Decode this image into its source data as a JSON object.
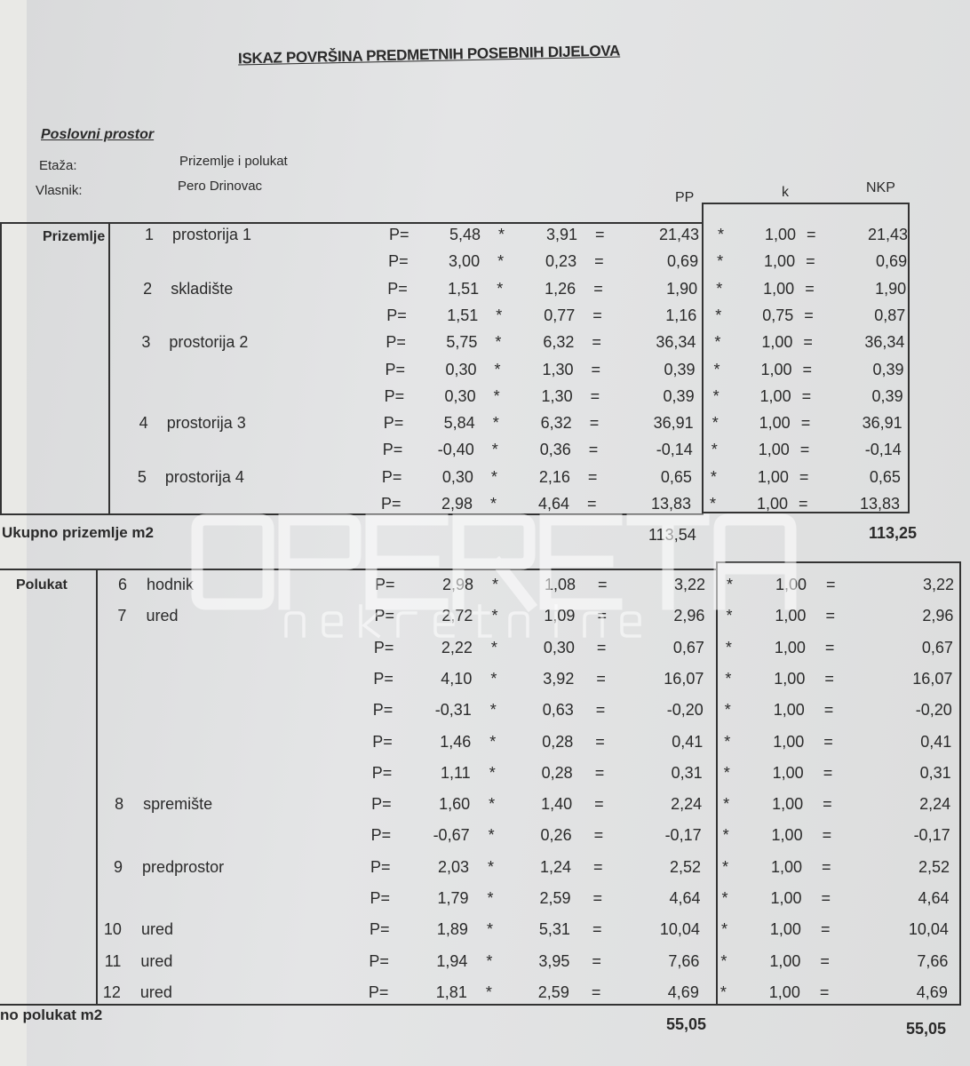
{
  "document": {
    "title": "ISKAZ POVRŠINA PREDMETNIH POSEBNIH DIJELOVA",
    "section": "Poslovni prostor",
    "etaza_label": "Etaža:",
    "etaza_value": "Prizemlje i polukat",
    "vlasnik_label": "Vlasnik:",
    "vlasnik_value": "Pero Drinovac",
    "col_pp": "PP",
    "col_k": "k",
    "col_nkp": "NKP",
    "watermark": {
      "brand": "OPERETA",
      "sub": "nekretnine"
    }
  },
  "prizemlje": {
    "label": "Prizemlje",
    "total_label": "Ukupno prizemlje m2",
    "total_pp": "113,54",
    "total_nkp": "113,25",
    "rows": [
      {
        "no": "1",
        "name": "prostorija 1",
        "p": "P=",
        "a": "5,48",
        "b": "3,91",
        "pp": "21,43",
        "k": "1,00",
        "nkp": "21,43"
      },
      {
        "no": "",
        "name": "",
        "p": "P=",
        "a": "3,00",
        "b": "0,23",
        "pp": "0,69",
        "k": "1,00",
        "nkp": "0,69"
      },
      {
        "no": "2",
        "name": "skladište",
        "p": "P=",
        "a": "1,51",
        "b": "1,26",
        "pp": "1,90",
        "k": "1,00",
        "nkp": "1,90"
      },
      {
        "no": "",
        "name": "",
        "p": "P=",
        "a": "1,51",
        "b": "0,77",
        "pp": "1,16",
        "k": "0,75",
        "nkp": "0,87"
      },
      {
        "no": "3",
        "name": "prostorija 2",
        "p": "P=",
        "a": "5,75",
        "b": "6,32",
        "pp": "36,34",
        "k": "1,00",
        "nkp": "36,34"
      },
      {
        "no": "",
        "name": "",
        "p": "P=",
        "a": "0,30",
        "b": "1,30",
        "pp": "0,39",
        "k": "1,00",
        "nkp": "0,39"
      },
      {
        "no": "",
        "name": "",
        "p": "P=",
        "a": "0,30",
        "b": "1,30",
        "pp": "0,39",
        "k": "1,00",
        "nkp": "0,39"
      },
      {
        "no": "4",
        "name": "prostorija 3",
        "p": "P=",
        "a": "5,84",
        "b": "6,32",
        "pp": "36,91",
        "k": "1,00",
        "nkp": "36,91"
      },
      {
        "no": "",
        "name": "",
        "p": "P=",
        "a": "-0,40",
        "b": "0,36",
        "pp": "-0,14",
        "k": "1,00",
        "nkp": "-0,14"
      },
      {
        "no": "5",
        "name": "prostorija 4",
        "p": "P=",
        "a": "0,30",
        "b": "2,16",
        "pp": "0,65",
        "k": "1,00",
        "nkp": "0,65"
      },
      {
        "no": "",
        "name": "",
        "p": "P=",
        "a": "2,98",
        "b": "4,64",
        "pp": "13,83",
        "k": "1,00",
        "nkp": "13,83"
      }
    ]
  },
  "polukat": {
    "label": "Polukat",
    "total_label": "no polukat m2",
    "total_pp": "55,05",
    "total_nkp": "55,05",
    "rows": [
      {
        "no": "6",
        "name": "hodnik",
        "p": "P=",
        "a": "2,98",
        "b": "1,08",
        "pp": "3,22",
        "k": "1,00",
        "nkp": "3,22"
      },
      {
        "no": "7",
        "name": "ured",
        "p": "P=",
        "a": "2,72",
        "b": "1,09",
        "pp": "2,96",
        "k": "1,00",
        "nkp": "2,96"
      },
      {
        "no": "",
        "name": "",
        "p": "P=",
        "a": "2,22",
        "b": "0,30",
        "pp": "0,67",
        "k": "1,00",
        "nkp": "0,67"
      },
      {
        "no": "",
        "name": "",
        "p": "P=",
        "a": "4,10",
        "b": "3,92",
        "pp": "16,07",
        "k": "1,00",
        "nkp": "16,07"
      },
      {
        "no": "",
        "name": "",
        "p": "P=",
        "a": "-0,31",
        "b": "0,63",
        "pp": "-0,20",
        "k": "1,00",
        "nkp": "-0,20"
      },
      {
        "no": "",
        "name": "",
        "p": "P=",
        "a": "1,46",
        "b": "0,28",
        "pp": "0,41",
        "k": "1,00",
        "nkp": "0,41"
      },
      {
        "no": "",
        "name": "",
        "p": "P=",
        "a": "1,11",
        "b": "0,28",
        "pp": "0,31",
        "k": "1,00",
        "nkp": "0,31"
      },
      {
        "no": "8",
        "name": "spremište",
        "p": "P=",
        "a": "1,60",
        "b": "1,40",
        "pp": "2,24",
        "k": "1,00",
        "nkp": "2,24"
      },
      {
        "no": "",
        "name": "",
        "p": "P=",
        "a": "-0,67",
        "b": "0,26",
        "pp": "-0,17",
        "k": "1,00",
        "nkp": "-0,17"
      },
      {
        "no": "9",
        "name": "predprostor",
        "p": "P=",
        "a": "2,03",
        "b": "1,24",
        "pp": "2,52",
        "k": "1,00",
        "nkp": "2,52"
      },
      {
        "no": "",
        "name": "",
        "p": "P=",
        "a": "1,79",
        "b": "2,59",
        "pp": "4,64",
        "k": "1,00",
        "nkp": "4,64"
      },
      {
        "no": "10",
        "name": "ured",
        "p": "P=",
        "a": "1,89",
        "b": "5,31",
        "pp": "10,04",
        "k": "1,00",
        "nkp": "10,04"
      },
      {
        "no": "11",
        "name": "ured",
        "p": "P=",
        "a": "1,94",
        "b": "3,95",
        "pp": "7,66",
        "k": "1,00",
        "nkp": "7,66"
      },
      {
        "no": "12",
        "name": "ured",
        "p": "P=",
        "a": "1,81",
        "b": "2,59",
        "pp": "4,69",
        "k": "1,00",
        "nkp": "4,69"
      }
    ]
  }
}
